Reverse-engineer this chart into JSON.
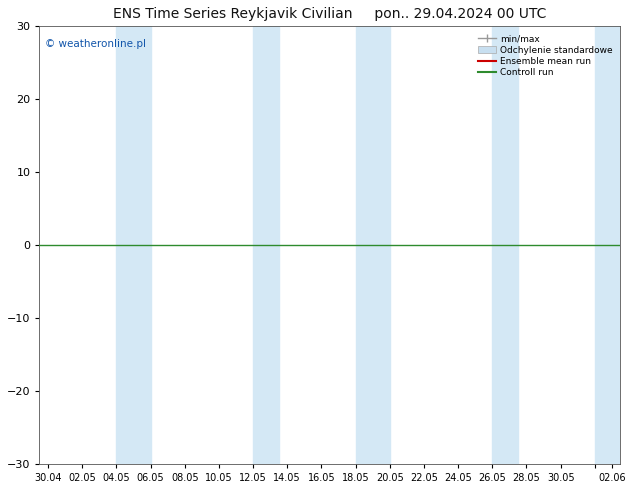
{
  "title_left": "ENS Time Series Reykjavik Civilian",
  "title_right": "pon.. 29.04.2024 00 UTC",
  "watermark": "© weatheronline.pl",
  "bg_color": "#ffffff",
  "band_color": "#d4e8f5",
  "band_ranges": [
    [
      4,
      6
    ],
    [
      12,
      13.5
    ],
    [
      18,
      20
    ],
    [
      26,
      27.5
    ],
    [
      32,
      33.5
    ]
  ],
  "ylim": [
    -30,
    30
  ],
  "yticks": [
    -30,
    -20,
    -10,
    0,
    10,
    20,
    30
  ],
  "x_tick_vals": [
    0,
    2,
    4,
    6,
    8,
    10,
    12,
    14,
    16,
    18,
    20,
    22,
    24,
    26,
    28,
    30,
    32,
    33
  ],
  "x_tick_labels": [
    "30.04",
    "02.05",
    "04.05",
    "06.05",
    "08.05",
    "10.05",
    "12.05",
    "14.05",
    "16.05",
    "18.05",
    "20.05",
    "22.05",
    "24.05",
    "26.05",
    "28.05",
    "30.05",
    "",
    "02.06"
  ],
  "xlim": [
    -0.5,
    33.5
  ],
  "zero_line_color": "#2e8b2e",
  "watermark_color": "#1155aa",
  "legend_labels": [
    "min/max",
    "Odchylenie standardowe",
    "Ensemble mean run",
    "Controll run"
  ],
  "legend_colors": [
    "#b0c8d8",
    "#c8dff0",
    "#cc0000",
    "#2e8b2e"
  ],
  "title_fontsize": 10,
  "tick_fontsize": 7,
  "spine_color": "#555555"
}
